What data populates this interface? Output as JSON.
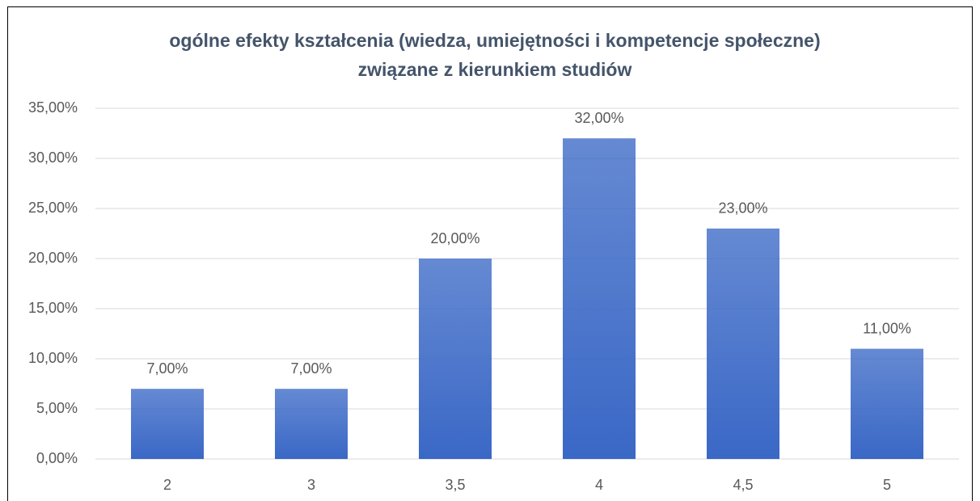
{
  "chart_data": {
    "type": "bar",
    "title": [
      "ogólne efekty kształcenia (wiedza, umiejętności i kompetencje społeczne)",
      "związane z kierunkiem studiów"
    ],
    "categories": [
      "2",
      "3",
      "3,5",
      "4",
      "4,5",
      "5"
    ],
    "values": [
      7,
      7,
      20,
      32,
      23,
      11
    ],
    "value_labels": [
      "7,00%",
      "7,00%",
      "20,00%",
      "32,00%",
      "23,00%",
      "11,00%"
    ],
    "color": "#3a68c6",
    "ylim": [
      0,
      35
    ],
    "yticks": [
      {
        "value": 0,
        "label": "0,00%"
      },
      {
        "value": 5,
        "label": "5,00%"
      },
      {
        "value": 10,
        "label": "10,00%"
      },
      {
        "value": 15,
        "label": "15,00%"
      },
      {
        "value": 20,
        "label": "20,00%"
      },
      {
        "value": 25,
        "label": "25,00%"
      },
      {
        "value": 30,
        "label": "30,00%"
      },
      {
        "value": 35,
        "label": "35,00%"
      }
    ],
    "grid": true
  }
}
